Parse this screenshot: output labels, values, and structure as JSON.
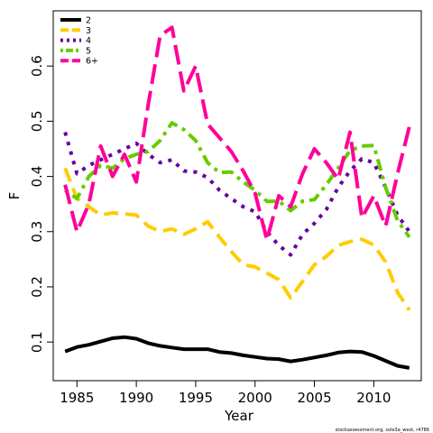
{
  "chart_data": {
    "type": "line",
    "xlabel": "Year",
    "ylabel": "F",
    "xlim": [
      1983,
      2014
    ],
    "ylim": [
      0.03,
      0.7
    ],
    "x_ticks": [
      1985,
      1990,
      1995,
      2000,
      2005,
      2010
    ],
    "y_ticks": [
      0.1,
      0.2,
      0.3,
      0.4,
      0.5,
      0.6
    ],
    "grid": false,
    "legend_position": "top-left",
    "credit": "stockassessment.org, sole3a_west, r4786",
    "x": [
      1984,
      1985,
      1986,
      1987,
      1988,
      1989,
      1990,
      1991,
      1992,
      1993,
      1994,
      1995,
      1996,
      1997,
      1998,
      1999,
      2000,
      2001,
      2002,
      2003,
      2004,
      2005,
      2006,
      2007,
      2008,
      2009,
      2010,
      2011,
      2012,
      2013
    ],
    "series": [
      {
        "name": "2",
        "color": "#000000",
        "dash": "solid",
        "values": [
          0.083,
          0.091,
          0.095,
          0.101,
          0.107,
          0.109,
          0.106,
          0.098,
          0.093,
          0.09,
          0.087,
          0.087,
          0.087,
          0.082,
          0.08,
          0.076,
          0.073,
          0.07,
          0.069,
          0.065,
          0.068,
          0.072,
          0.076,
          0.081,
          0.083,
          0.082,
          0.075,
          0.066,
          0.057,
          0.053
        ]
      },
      {
        "name": "3",
        "color": "#FFCC00",
        "dash": "long",
        "values": [
          0.415,
          0.36,
          0.345,
          0.33,
          0.334,
          0.332,
          0.33,
          0.31,
          0.3,
          0.305,
          0.295,
          0.305,
          0.318,
          0.29,
          0.264,
          0.24,
          0.236,
          0.225,
          0.213,
          0.18,
          0.21,
          0.24,
          0.255,
          0.275,
          0.282,
          0.286,
          0.276,
          0.245,
          0.19,
          0.158
        ]
      },
      {
        "name": "4",
        "color": "#6600A0",
        "dash": "dot",
        "values": [
          0.48,
          0.405,
          0.42,
          0.43,
          0.44,
          0.45,
          0.46,
          0.44,
          0.425,
          0.43,
          0.41,
          0.408,
          0.398,
          0.375,
          0.36,
          0.345,
          0.336,
          0.3,
          0.275,
          0.258,
          0.295,
          0.315,
          0.34,
          0.38,
          0.41,
          0.432,
          0.425,
          0.38,
          0.33,
          0.3
        ]
      },
      {
        "name": "5",
        "color": "#66CC00",
        "dash": "dotdash",
        "values": [
          0.375,
          0.36,
          0.4,
          0.42,
          0.415,
          0.432,
          0.44,
          0.445,
          0.465,
          0.497,
          0.485,
          0.465,
          0.425,
          0.407,
          0.408,
          0.39,
          0.375,
          0.355,
          0.355,
          0.338,
          0.355,
          0.358,
          0.385,
          0.415,
          0.447,
          0.455,
          0.456,
          0.38,
          0.32,
          0.29
        ]
      },
      {
        "name": "6+",
        "color": "#FF0099",
        "dash": "longdash",
        "values": [
          0.385,
          0.3,
          0.35,
          0.455,
          0.4,
          0.44,
          0.39,
          0.53,
          0.655,
          0.67,
          0.555,
          0.6,
          0.495,
          0.47,
          0.445,
          0.41,
          0.37,
          0.285,
          0.365,
          0.345,
          0.405,
          0.45,
          0.425,
          0.395,
          0.48,
          0.325,
          0.365,
          0.31,
          0.405,
          0.49
        ]
      }
    ]
  }
}
